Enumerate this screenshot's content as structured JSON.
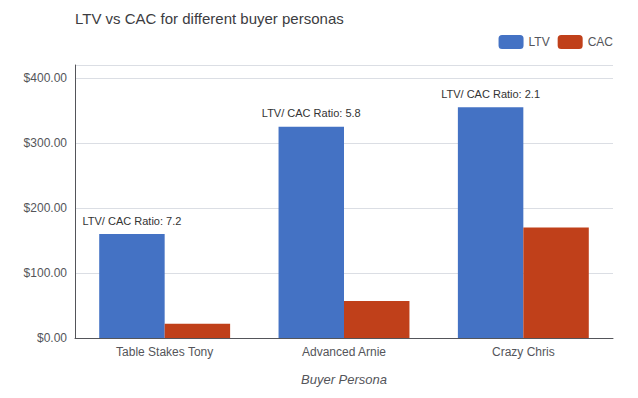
{
  "chart_data": {
    "type": "bar",
    "title": "LTV vs CAC for different buyer personas",
    "xlabel": "Buyer Persona",
    "categories": [
      "Table Stakes Tony",
      "Advanced Arnie",
      "Crazy Chris"
    ],
    "series": [
      {
        "name": "LTV",
        "color": "#4472C4",
        "values": [
          160,
          325,
          355
        ]
      },
      {
        "name": "CAC",
        "color": "#C0401A",
        "values": [
          22,
          57,
          170
        ]
      }
    ],
    "annotations": [
      "LTV/ CAC Ratio: 7.2",
      "LTV/ CAC Ratio: 5.8",
      "LTV/ CAC Ratio: 2.1"
    ],
    "ylim": [
      0,
      420
    ],
    "yticks": [
      {
        "value": 0,
        "label": "$0.00"
      },
      {
        "value": 100,
        "label": "$100.00"
      },
      {
        "value": 200,
        "label": "$200.00"
      },
      {
        "value": 300,
        "label": "$300.00"
      },
      {
        "value": 400,
        "label": "$400.00"
      }
    ],
    "grid": true,
    "legend": "upper right"
  }
}
